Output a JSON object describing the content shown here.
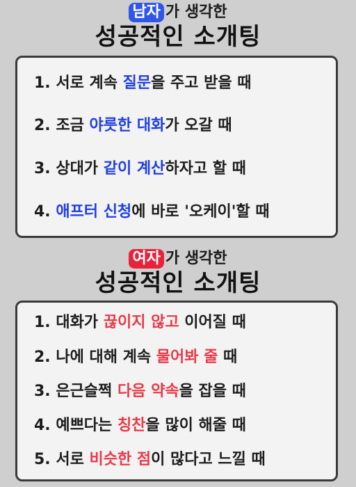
{
  "male_section": {
    "badge": "남자",
    "subtitle_rest": "가 생각한",
    "title": "성공적인 소개팅",
    "items": [
      {
        "pre": "1. 서로 계속 ",
        "hl": "질문",
        "post": "을 주고 받을 때"
      },
      {
        "pre": "2. 조금 ",
        "hl": "야릇한 대화",
        "post": "가 오갈 때"
      },
      {
        "pre": "3. 상대가 ",
        "hl": "같이 계산",
        "post": "하자고 할 때"
      },
      {
        "pre": "4. ",
        "hl": "애프터 신청",
        "post": "에 바로 '오케이'할 때"
      }
    ]
  },
  "female_section": {
    "badge": "여자",
    "subtitle_rest": "가 생각한",
    "title": "성공적인 소개팅",
    "items": [
      {
        "pre": "1. 대화가 ",
        "hl": "끊이지 않고",
        "post": " 이어질 때"
      },
      {
        "pre": "2. 나에 대해 계속 ",
        "hl": "물어봐 줄",
        "post": " 때"
      },
      {
        "pre": "3. 은근슬쩍 ",
        "hl": "다음 약속",
        "post": "을 잡을 때"
      },
      {
        "pre": "4. 예쁘다는 ",
        "hl": "칭찬",
        "post": "을 많이 해줄 때"
      },
      {
        "pre": "5. 서로 ",
        "hl": "비슷한 점",
        "post": "이 많다고 느낄 때"
      }
    ]
  },
  "colors": {
    "male_badge": "#2f56e8",
    "female_badge": "#e8223a",
    "male_highlight": "#1f3fe0",
    "female_highlight": "#e83a48"
  }
}
